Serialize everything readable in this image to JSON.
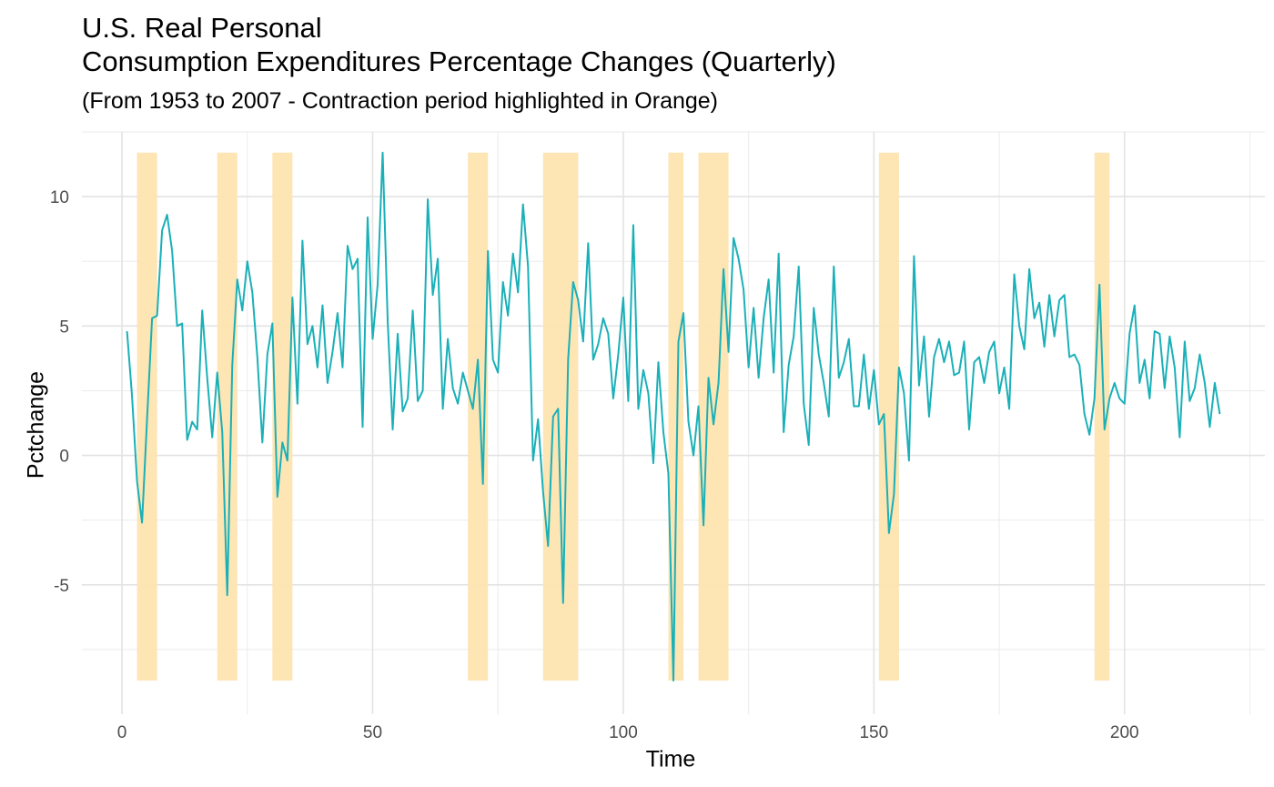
{
  "chart": {
    "title": "U.S. Real Personal\nConsumption Expenditures Percentage Changes (Quarterly)",
    "subtitle": "(From 1953 to 2007 - Contraction period highlighted in Orange)",
    "xlabel": "Time",
    "ylabel": "Pctchange"
  },
  "chart_data": {
    "type": "line",
    "title": "U.S. Real Personal\nConsumption Expenditures Percentage Changes (Quarterly)",
    "subtitle": "(From 1953 to 2007 - Contraction period highlighted in Orange)",
    "xlabel": "Time",
    "ylabel": "Pctchange",
    "xlim": [
      -8,
      228
    ],
    "ylim": [
      -10,
      12.5
    ],
    "x_ticks": [
      0,
      50,
      100,
      150,
      200
    ],
    "y_ticks": [
      -5,
      0,
      5,
      10
    ],
    "grid": true,
    "line_color": "#1ab0b8",
    "highlight_color": "#fde4b0",
    "contraction_periods": [
      [
        3,
        7
      ],
      [
        19,
        23
      ],
      [
        30,
        34
      ],
      [
        69,
        73
      ],
      [
        84,
        91
      ],
      [
        109,
        112
      ],
      [
        115,
        121
      ],
      [
        151,
        155
      ],
      [
        194,
        197
      ]
    ],
    "series": [
      {
        "x_start": 1,
        "values": [
          4.8,
          2.3,
          -1.0,
          -2.6,
          1.4,
          5.3,
          5.4,
          8.7,
          9.3,
          7.9,
          5.0,
          5.1,
          0.6,
          1.3,
          1.0,
          5.6,
          3.0,
          0.7,
          3.2,
          0.9,
          -5.4,
          3.5,
          6.8,
          5.6,
          7.5,
          6.3,
          3.8,
          0.5,
          3.9,
          5.1,
          -1.6,
          0.5,
          -0.2,
          6.1,
          2.0,
          8.3,
          4.3,
          5.0,
          3.4,
          5.8,
          2.8,
          4.0,
          5.5,
          3.4,
          8.1,
          7.2,
          7.6,
          1.1,
          9.2,
          4.5,
          6.6,
          11.7,
          5.2,
          1.0,
          4.7,
          1.7,
          2.2,
          5.6,
          2.1,
          2.5,
          9.9,
          6.2,
          7.6,
          1.8,
          4.5,
          2.6,
          2.0,
          3.2,
          2.5,
          1.8,
          3.7,
          -1.1,
          7.9,
          3.7,
          3.2,
          6.7,
          5.4,
          7.8,
          6.3,
          9.7,
          7.3,
          -0.2,
          1.4,
          -1.4,
          -3.5,
          1.5,
          1.8,
          -5.7,
          3.7,
          6.7,
          6.0,
          4.4,
          8.2,
          3.7,
          4.3,
          5.3,
          4.7,
          2.2,
          3.9,
          6.1,
          2.1,
          8.9,
          1.8,
          3.3,
          2.4,
          -0.3,
          3.6,
          0.9,
          -0.7,
          -8.7,
          4.4,
          5.5,
          1.3,
          0.0,
          1.9,
          -2.7,
          3.0,
          1.2,
          2.8,
          7.2,
          4.0,
          8.4,
          7.6,
          6.4,
          3.4,
          5.7,
          3.0,
          5.3,
          6.8,
          3.2,
          7.8,
          0.9,
          3.5,
          4.6,
          7.3,
          2.0,
          0.4,
          5.7,
          3.9,
          2.8,
          1.5,
          7.3,
          3.0,
          3.6,
          4.5,
          1.9,
          1.9,
          3.9,
          1.8,
          3.3,
          1.2,
          1.6,
          -3.0,
          -1.5,
          3.4,
          2.4,
          -0.2,
          7.7,
          2.7,
          4.6,
          1.5,
          3.8,
          4.5,
          3.6,
          4.4,
          3.1,
          3.2,
          4.4,
          1.0,
          3.6,
          3.8,
          2.8,
          4.0,
          4.4,
          2.4,
          3.4,
          1.8,
          7.0,
          5.0,
          4.1,
          7.2,
          5.3,
          5.9,
          4.2,
          6.2,
          4.6,
          6.0,
          6.2,
          3.8,
          3.9,
          3.5,
          1.6,
          0.8,
          2.2,
          6.6,
          1.0,
          2.2,
          2.8,
          2.2,
          2.0,
          4.7,
          5.8,
          2.8,
          3.7,
          2.2,
          4.8,
          4.7,
          2.6,
          4.6,
          3.4,
          0.7,
          4.4,
          2.1,
          2.6,
          3.9,
          2.8,
          1.1,
          2.8,
          1.6
        ]
      }
    ]
  }
}
